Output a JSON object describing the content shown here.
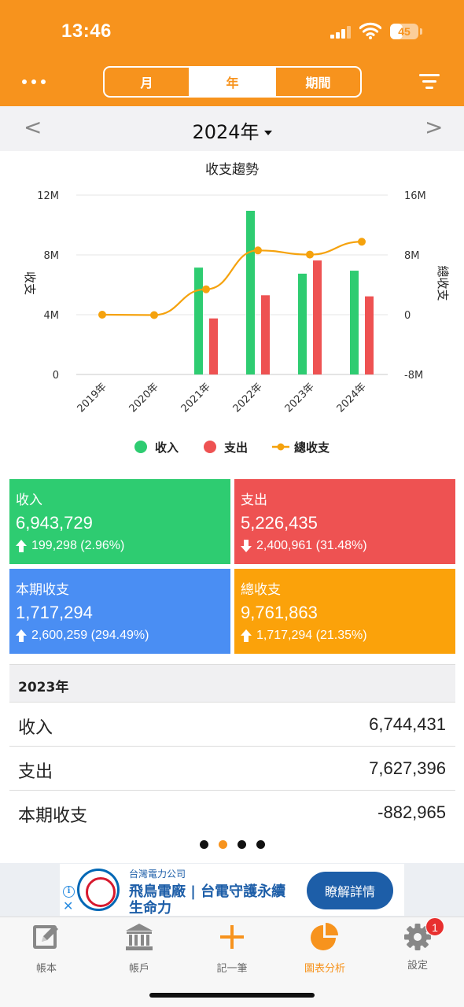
{
  "status": {
    "time": "13:46",
    "battery": "45",
    "battery_level": 45
  },
  "header": {
    "tabs": [
      {
        "label": "月",
        "active": false
      },
      {
        "label": "年",
        "active": true
      },
      {
        "label": "期間",
        "active": false
      }
    ]
  },
  "year_nav": {
    "prev": "<",
    "next": ">",
    "title": "2024年"
  },
  "chart_data": {
    "type": "bar",
    "title": "收支趨勢",
    "categories": [
      "2019年",
      "2020年",
      "2021年",
      "2022年",
      "2023年",
      "2024年"
    ],
    "ylabel": "收支",
    "y2label": "總收支",
    "ylim": [
      0,
      12000000
    ],
    "y2lim": [
      -8000000,
      16000000
    ],
    "yticks": [
      "0",
      "4M",
      "8M",
      "12M"
    ],
    "y2ticks": [
      "-8M",
      "0",
      "8M",
      "16M"
    ],
    "grid": true,
    "legend_position": "bottom",
    "series": [
      {
        "name": "收入",
        "type": "bar",
        "color": "#2ecc71",
        "values": [
          0,
          0,
          7150000,
          10950000,
          6744431,
          6943729
        ]
      },
      {
        "name": "支出",
        "type": "bar",
        "color": "#ee5252",
        "values": [
          0,
          0,
          3750000,
          5300000,
          7627396,
          5226435
        ]
      },
      {
        "name": "總收支",
        "type": "line",
        "axis": "right",
        "color": "#f5a20d",
        "values": [
          0,
          -50000,
          3400000,
          8600000,
          8044569,
          9761863
        ]
      }
    ]
  },
  "cards": {
    "income": {
      "title": "收入",
      "value": "6,943,729",
      "change": "199,298 (2.96%)",
      "direction": "up",
      "color": "#2ecc71"
    },
    "expense": {
      "title": "支出",
      "value": "5,226,435",
      "change": "2,400,961 (31.48%)",
      "direction": "down",
      "color": "#ee5252"
    },
    "period": {
      "title": "本期收支",
      "value": "1,717,294",
      "change": "2,600,259 (294.49%)",
      "direction": "up",
      "color": "#4a8ef3"
    },
    "total": {
      "title": "總收支",
      "value": "9,761,863",
      "change": "1,717,294 (21.35%)",
      "direction": "up",
      "color": "#fba20a"
    }
  },
  "prev_year": {
    "title": "2023年",
    "rows": [
      {
        "label": "收入",
        "value": "6,744,431"
      },
      {
        "label": "支出",
        "value": "7,627,396"
      },
      {
        "label": "本期收支",
        "value": "-882,965"
      }
    ]
  },
  "pager": {
    "count": 4,
    "active": 1
  },
  "ad": {
    "company": "台灣電力公司",
    "line1": "飛鳥電廠 | 台電守護永續",
    "line2": "生命力",
    "cta": "瞭解詳情",
    "info": "i",
    "close": "✕"
  },
  "tabbar": {
    "items": [
      {
        "label": "帳本",
        "icon": "edit-icon"
      },
      {
        "label": "帳戶",
        "icon": "bank-icon"
      },
      {
        "label": "記一筆",
        "icon": "plus-icon"
      },
      {
        "label": "圖表分析",
        "icon": "pie-chart-icon",
        "active": true
      },
      {
        "label": "設定",
        "icon": "gear-icon",
        "badge": "1"
      }
    ]
  }
}
